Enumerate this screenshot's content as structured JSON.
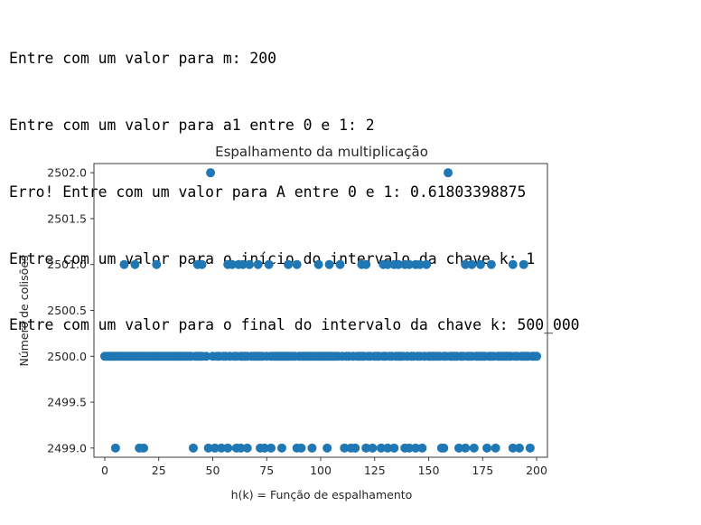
{
  "console": {
    "lines": [
      "Entre com um valor para m: 200",
      "Entre com um valor para a1 entre 0 e 1: 2",
      "Erro! Entre com um valor para A entre 0 e 1: 0.61803398875",
      "Entre com um valor para o início do intervalo da chave k: 1",
      "Entre com um valor para o final do intervalo da chave k: 500_000"
    ]
  },
  "chart_data": {
    "type": "scatter",
    "title": "Espalhamento da multiplicação",
    "xlabel": "h(k) = Função de espalhamento",
    "ylabel": "Número de colisões",
    "xlim": [
      -5,
      205
    ],
    "ylim": [
      2498.9,
      2502.1
    ],
    "xticks": [
      0,
      25,
      50,
      75,
      100,
      125,
      150,
      175,
      200
    ],
    "xtick_labels": [
      "0",
      "25",
      "50",
      "75",
      "100",
      "125",
      "150",
      "175",
      "200"
    ],
    "yticks": [
      2499.0,
      2499.5,
      2500.0,
      2500.5,
      2501.0,
      2501.5,
      2502.0
    ],
    "ytick_labels": [
      "2499.0",
      "2499.5",
      "2500.0",
      "2500.5",
      "2501.0",
      "2501.5",
      "2502.0"
    ],
    "grid": false,
    "marker_color": "#1f77b4",
    "series": [
      {
        "y": 2502,
        "x": [
          49,
          159
        ]
      },
      {
        "y": 2501,
        "x": [
          9,
          14,
          24,
          43,
          45,
          57,
          59,
          62,
          64,
          67,
          71,
          76,
          85,
          89,
          99,
          104,
          109,
          119,
          121,
          129,
          131,
          134,
          136,
          139,
          141,
          144,
          146,
          149,
          167,
          170,
          174,
          179,
          189,
          194
        ]
      },
      {
        "y": 2499,
        "x": [
          5,
          16,
          18,
          41,
          48,
          51,
          54,
          57,
          61,
          63,
          66,
          72,
          74,
          77,
          82,
          89,
          91,
          96,
          103,
          111,
          114,
          116,
          121,
          124,
          128,
          131,
          134,
          139,
          141,
          144,
          147,
          156,
          157,
          164,
          167,
          171,
          177,
          181,
          189,
          192,
          197
        ],
        "note_ignore": ""
      },
      {
        "y": 2500,
        "x": [
          0,
          1,
          2,
          3,
          4,
          5,
          6,
          7,
          8,
          9,
          10,
          11,
          12,
          13,
          14,
          15,
          16,
          17,
          18,
          19,
          20,
          21,
          22,
          23,
          24,
          25,
          26,
          27,
          28,
          29,
          30,
          31,
          32,
          33,
          34,
          35,
          36,
          37,
          38,
          39,
          40,
          42,
          43,
          44,
          45,
          47,
          50,
          52,
          53,
          55,
          56,
          58,
          60,
          61,
          63,
          64,
          65,
          66,
          68,
          69,
          70,
          71,
          72,
          73,
          75,
          77,
          78,
          79,
          80,
          81,
          82,
          83,
          84,
          85,
          86,
          87,
          88,
          90,
          91,
          92,
          93,
          94,
          95,
          96,
          97,
          98,
          99,
          100,
          101,
          102,
          103,
          104,
          105,
          106,
          107,
          108,
          110,
          112,
          113,
          115,
          117,
          118,
          119,
          120,
          122,
          123,
          125,
          126,
          127,
          129,
          130,
          132,
          133,
          135,
          136,
          137,
          138,
          140,
          142,
          143,
          145,
          146,
          148,
          150,
          151,
          152,
          153,
          154,
          155,
          157,
          158,
          160,
          161,
          162,
          163,
          165,
          166,
          168,
          169,
          170,
          172,
          173,
          174,
          175,
          176,
          178,
          179,
          180,
          182,
          183,
          184,
          185,
          186,
          187,
          188,
          190,
          191,
          193,
          194,
          195,
          196,
          198,
          199,
          200
        ]
      }
    ]
  }
}
